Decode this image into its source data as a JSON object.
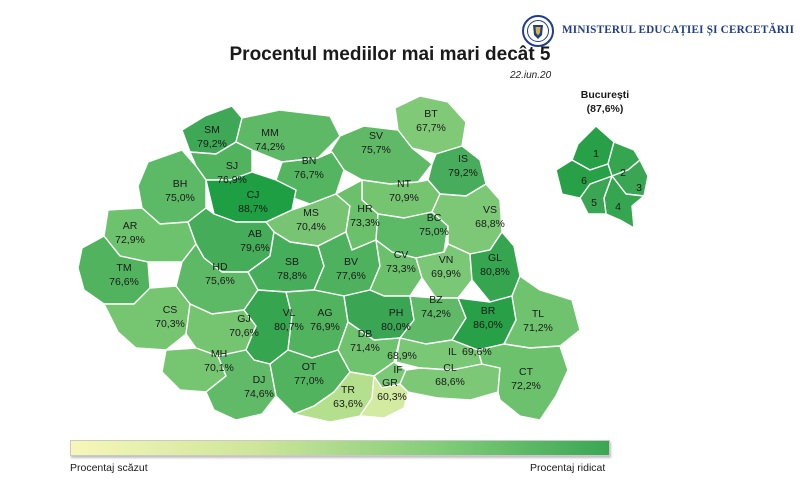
{
  "header": {
    "ministry_name": "MINISTERUL EDUCAȚIEI ȘI CERCETĂRII",
    "logo_icon": "ministry-seal-icon",
    "title": "Procentul mediilor mai mari decât 5",
    "date": "22.iun.20"
  },
  "map": {
    "counties": [
      {
        "code": "SM",
        "value": "79,2%"
      },
      {
        "code": "MM",
        "value": "74,2%"
      },
      {
        "code": "BT",
        "value": "67,7%"
      },
      {
        "code": "SV",
        "value": "75,7%"
      },
      {
        "code": "SJ",
        "value": "76,9%"
      },
      {
        "code": "BN",
        "value": "76,7%"
      },
      {
        "code": "IS",
        "value": "79,2%"
      },
      {
        "code": "BH",
        "value": "75,0%"
      },
      {
        "code": "CJ",
        "value": "88,7%"
      },
      {
        "code": "NT",
        "value": "70,9%"
      },
      {
        "code": "MS",
        "value": "70,4%"
      },
      {
        "code": "HR",
        "value": "73,3%"
      },
      {
        "code": "BC",
        "value": "75,0%"
      },
      {
        "code": "VS",
        "value": "68,8%"
      },
      {
        "code": "AR",
        "value": "72,9%"
      },
      {
        "code": "AB",
        "value": "79,6%"
      },
      {
        "code": "TM",
        "value": "76,6%"
      },
      {
        "code": "HD",
        "value": "75,6%"
      },
      {
        "code": "SB",
        "value": "78,8%"
      },
      {
        "code": "BV",
        "value": "77,6%"
      },
      {
        "code": "CV",
        "value": "73,3%"
      },
      {
        "code": "VN",
        "value": "69,9%"
      },
      {
        "code": "GL",
        "value": "80,8%"
      },
      {
        "code": "CS",
        "value": "70,3%"
      },
      {
        "code": "GJ",
        "value": "70,6%"
      },
      {
        "code": "VL",
        "value": "80,7%"
      },
      {
        "code": "AG",
        "value": "76,9%"
      },
      {
        "code": "PH",
        "value": "80,0%"
      },
      {
        "code": "BZ",
        "value": "74,2%"
      },
      {
        "code": "BR",
        "value": "86,0%"
      },
      {
        "code": "TL",
        "value": "71,2%"
      },
      {
        "code": "DB",
        "value": "71,4%"
      },
      {
        "code": "MH",
        "value": "70,1%"
      },
      {
        "code": "IL",
        "value": "69,6%"
      },
      {
        "code": "IF",
        "value": "68,9%"
      },
      {
        "code": "DJ",
        "value": "74,6%"
      },
      {
        "code": "OT",
        "value": "77,0%"
      },
      {
        "code": "CL",
        "value": "68,6%"
      },
      {
        "code": "CT",
        "value": "72,2%"
      },
      {
        "code": "TR",
        "value": "63,6%"
      },
      {
        "code": "GR",
        "value": "60,3%"
      }
    ]
  },
  "bucharest": {
    "title": "București",
    "value": "(87,6%)",
    "sectors": [
      "1",
      "2",
      "3",
      "4",
      "5",
      "6"
    ]
  },
  "legend": {
    "low_label": "Procentaj scăzut",
    "high_label": "Procentaj ridicat",
    "low_color": "#f7f7b8",
    "high_color": "#3aa654"
  }
}
